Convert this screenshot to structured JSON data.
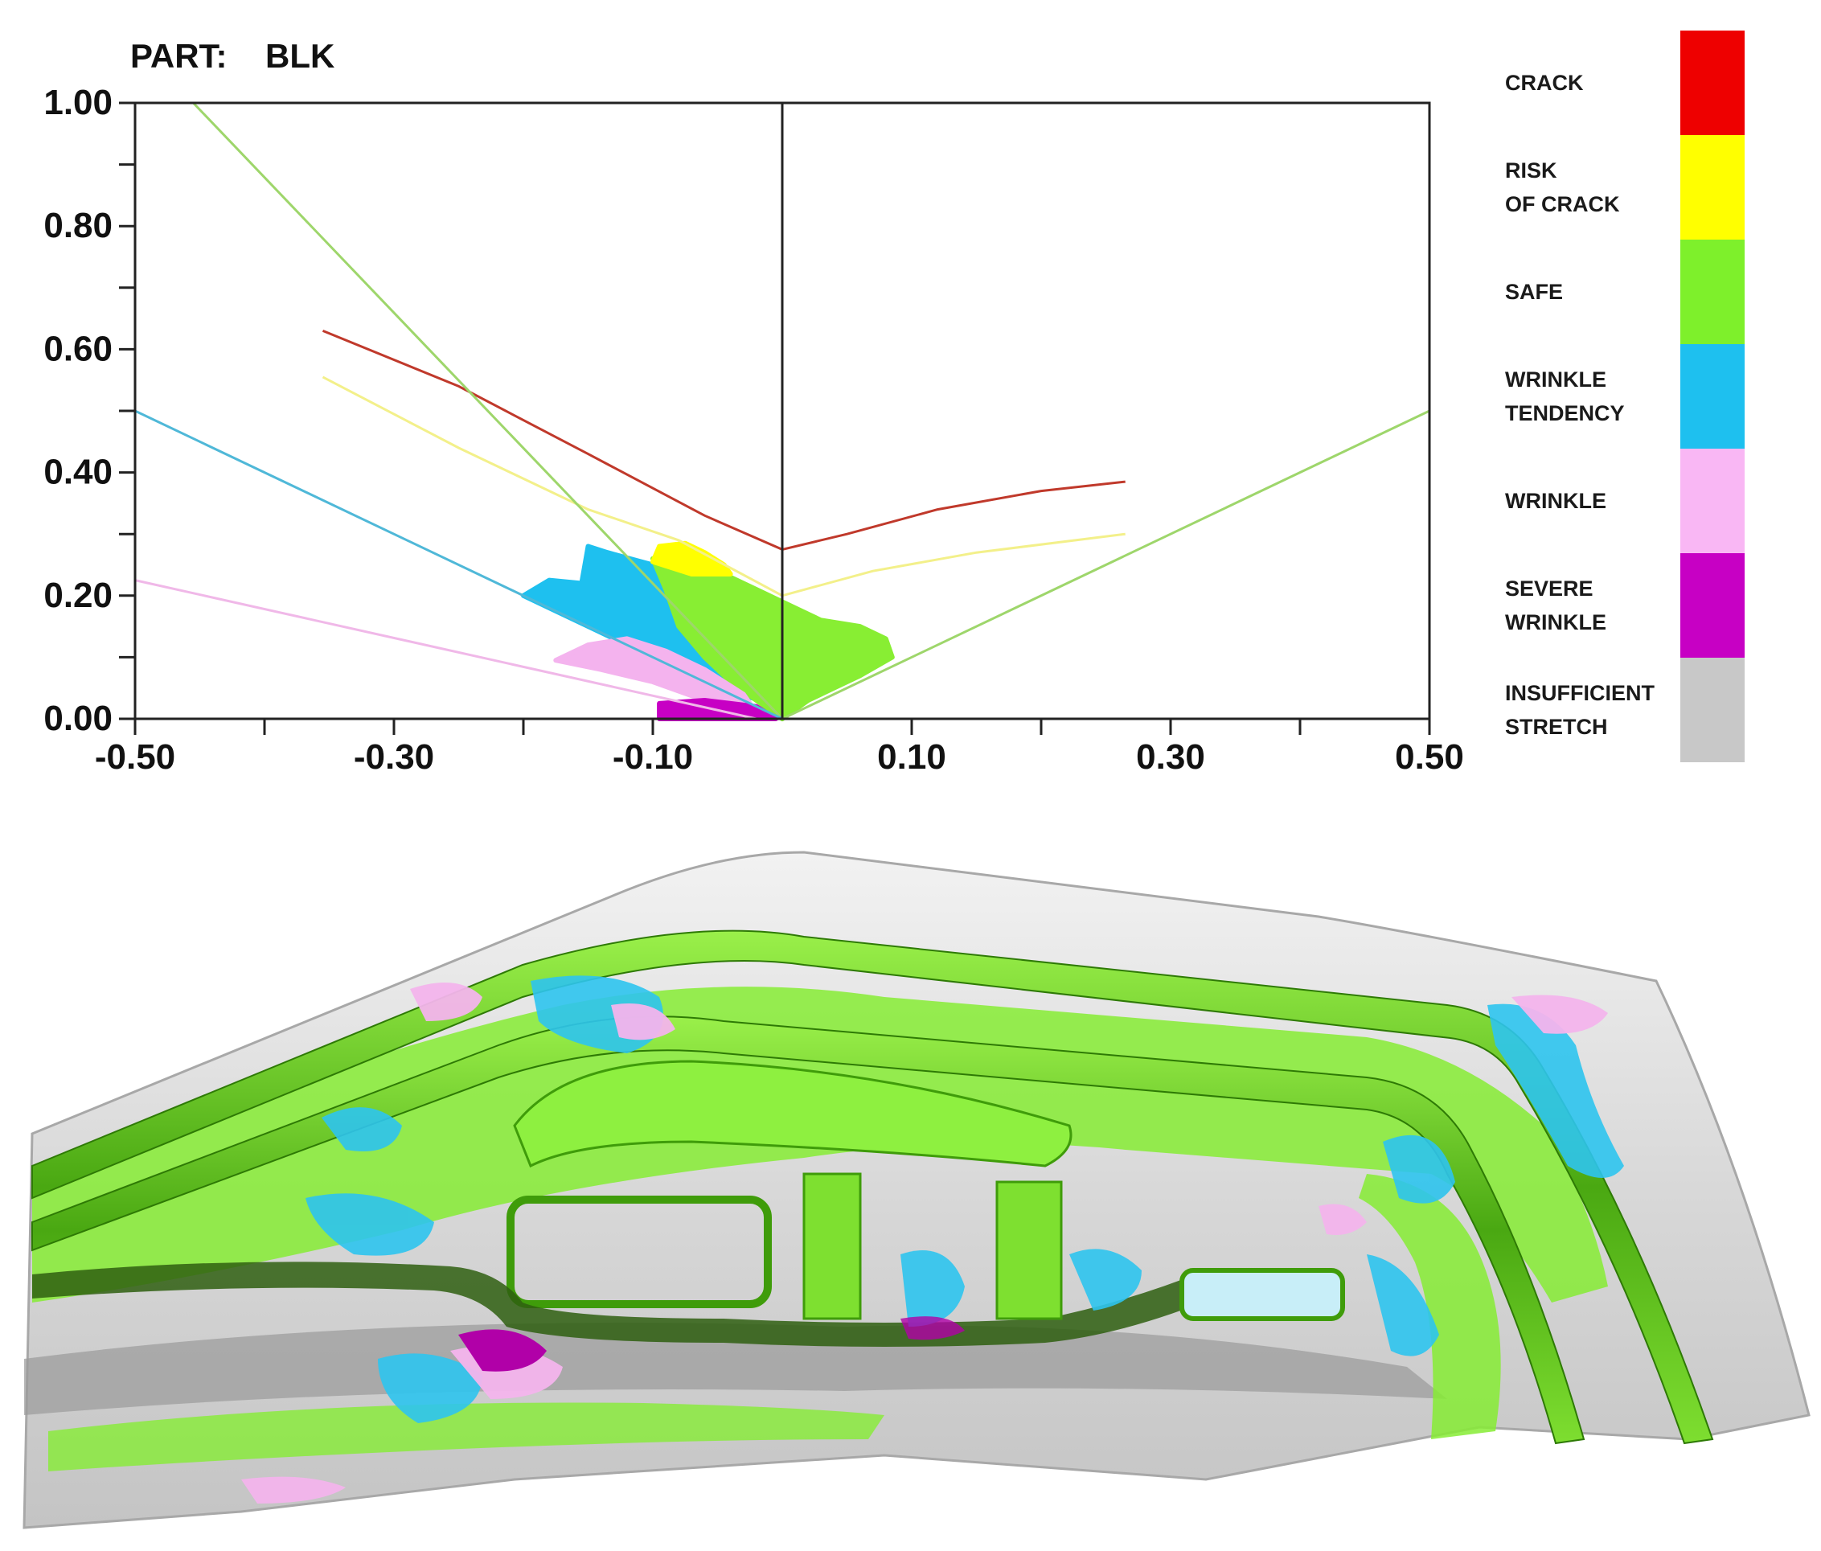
{
  "part": {
    "label": "PART:",
    "value": "BLK"
  },
  "chart_data": {
    "type": "scatter",
    "title": "",
    "xlabel": "",
    "ylabel": "",
    "xlim": [
      -0.5,
      0.5
    ],
    "ylim": [
      0.0,
      1.0
    ],
    "grid": false,
    "legend_position": "right",
    "x_ticks": [
      "-0.50",
      "-0.30",
      "-0.10",
      "0.10",
      "0.30",
      "0.50"
    ],
    "x_tick_values": [
      -0.5,
      -0.3,
      -0.1,
      0.1,
      0.3,
      0.5
    ],
    "y_ticks": [
      "1.00",
      "0.80",
      "0.60",
      "0.40",
      "0.20",
      "0.00"
    ],
    "y_tick_values": [
      1.0,
      0.8,
      0.6,
      0.4,
      0.2,
      0.0
    ],
    "curves": [
      {
        "category": "crack",
        "color": "#c0392b",
        "points": [
          [
            -0.355,
            0.63
          ],
          [
            -0.25,
            0.54
          ],
          [
            -0.15,
            0.43
          ],
          [
            -0.06,
            0.33
          ],
          [
            0.0,
            0.275
          ],
          [
            0.05,
            0.3
          ],
          [
            0.12,
            0.34
          ],
          [
            0.2,
            0.37
          ],
          [
            0.265,
            0.385
          ]
        ]
      },
      {
        "category": "risk_of_crack",
        "color": "#f3f08a",
        "points": [
          [
            -0.355,
            0.555
          ],
          [
            -0.25,
            0.44
          ],
          [
            -0.15,
            0.34
          ],
          [
            -0.08,
            0.29
          ],
          [
            0.0,
            0.2
          ],
          [
            0.07,
            0.24
          ],
          [
            0.15,
            0.27
          ],
          [
            0.265,
            0.3
          ]
        ]
      },
      {
        "category": "safe_boundary_left",
        "color": "#9ed66b",
        "points": [
          [
            -0.455,
            1.0
          ],
          [
            0.0,
            0.0
          ]
        ]
      },
      {
        "category": "safe_boundary_right",
        "color": "#9ed66b",
        "points": [
          [
            0.0,
            0.0
          ],
          [
            0.5,
            0.5
          ]
        ]
      },
      {
        "category": "wrinkle_tendency_boundary",
        "color": "#4fb8d8",
        "points": [
          [
            -0.5,
            0.5
          ],
          [
            0.0,
            0.0
          ]
        ]
      },
      {
        "category": "wrinkle_boundary",
        "color": "#f0b8e8",
        "points": [
          [
            -0.5,
            0.225
          ],
          [
            -0.02,
            0.0
          ]
        ]
      }
    ],
    "point_regions": [
      {
        "category": "wrinkle_tendency",
        "color": "#1ec0ef",
        "polygon": [
          [
            -0.2,
            0.2
          ],
          [
            -0.18,
            0.225
          ],
          [
            -0.155,
            0.22
          ],
          [
            -0.15,
            0.28
          ],
          [
            -0.135,
            0.27
          ],
          [
            -0.1,
            0.25
          ],
          [
            -0.09,
            0.22
          ],
          [
            -0.06,
            0.12
          ],
          [
            -0.02,
            0.05
          ],
          [
            0.0,
            0.02
          ],
          [
            -0.05,
            0.05
          ],
          [
            -0.1,
            0.1
          ],
          [
            -0.15,
            0.15
          ]
        ]
      },
      {
        "category": "safe",
        "color": "#88ee33",
        "polygon": [
          [
            -0.1,
            0.26
          ],
          [
            -0.08,
            0.27
          ],
          [
            -0.05,
            0.24
          ],
          [
            -0.02,
            0.21
          ],
          [
            0.0,
            0.19
          ],
          [
            0.03,
            0.16
          ],
          [
            0.06,
            0.15
          ],
          [
            0.08,
            0.13
          ],
          [
            0.085,
            0.1
          ],
          [
            0.06,
            0.07
          ],
          [
            0.04,
            0.05
          ],
          [
            0.02,
            0.03
          ],
          [
            0.0,
            0.0
          ],
          [
            -0.02,
            0.03
          ],
          [
            -0.04,
            0.06
          ],
          [
            -0.06,
            0.1
          ],
          [
            -0.08,
            0.15
          ],
          [
            -0.09,
            0.21
          ]
        ]
      },
      {
        "category": "risk_of_crack",
        "color": "#ffff00",
        "polygon": [
          [
            -0.1,
            0.255
          ],
          [
            -0.095,
            0.28
          ],
          [
            -0.075,
            0.285
          ],
          [
            -0.06,
            0.27
          ],
          [
            -0.045,
            0.25
          ],
          [
            -0.04,
            0.235
          ],
          [
            -0.07,
            0.235
          ]
        ]
      },
      {
        "category": "wrinkle",
        "color": "#f4b3ee",
        "polygon": [
          [
            -0.175,
            0.095
          ],
          [
            -0.15,
            0.12
          ],
          [
            -0.12,
            0.13
          ],
          [
            -0.09,
            0.11
          ],
          [
            -0.06,
            0.08
          ],
          [
            -0.03,
            0.04
          ],
          [
            -0.02,
            0.01
          ],
          [
            -0.06,
            0.03
          ],
          [
            -0.1,
            0.06
          ],
          [
            -0.14,
            0.08
          ]
        ]
      },
      {
        "category": "severe_wrinkle",
        "color": "#c700c4",
        "polygon": [
          [
            -0.095,
            0.025
          ],
          [
            -0.06,
            0.03
          ],
          [
            -0.02,
            0.02
          ],
          [
            -0.005,
            0.0
          ],
          [
            -0.095,
            0.0
          ]
        ]
      }
    ],
    "legend": [
      {
        "key": "crack",
        "lines": [
          "CRACK"
        ],
        "color": "#ee0000"
      },
      {
        "key": "risk_of_crack",
        "lines": [
          "RISK",
          "OF CRACK"
        ],
        "color": "#ffff00"
      },
      {
        "key": "safe",
        "lines": [
          "SAFE"
        ],
        "color": "#7ef02b"
      },
      {
        "key": "wrinkle_tendency",
        "lines": [
          "WRINKLE",
          "TENDENCY"
        ],
        "color": "#1ec0ef"
      },
      {
        "key": "wrinkle",
        "lines": [
          "WRINKLE"
        ],
        "color": "#f9b7f4"
      },
      {
        "key": "severe_wrinkle",
        "lines": [
          "SEVERE",
          "WRINKLE"
        ],
        "color": "#c700c4"
      },
      {
        "key": "insufficient_stretch",
        "lines": [
          "INSUFFICIENT",
          "STRETCH"
        ],
        "color": "#c8c8c8"
      }
    ]
  },
  "contour_part": {
    "colors": {
      "panel": "#d6d6d6",
      "panel_light": "#eaeaea",
      "shadow": "#8a8a8a",
      "safe": "#86ec34",
      "safe_dark": "#3f9c0a",
      "wrinkle_tendency": "#2ec4ee",
      "wrinkle": "#f3b4ec",
      "severe_wrinkle": "#b100a8"
    }
  }
}
